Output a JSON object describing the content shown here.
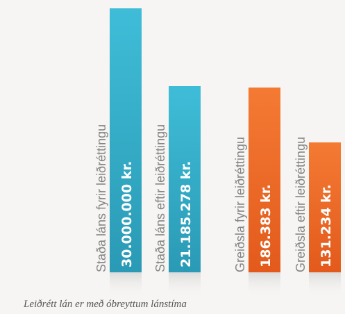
{
  "chart_data": [
    {
      "type": "bar",
      "categories": [
        "Staða láns fyrir leiðréttingu",
        "Staða láns eftir leiðréttingu"
      ],
      "values": [
        30000000,
        21185278
      ],
      "value_labels": [
        "30.000.000 kr.",
        "21.185.278 kr."
      ],
      "colors": {
        "top": "#3fbdd8",
        "bottom": "#2a9ab5"
      },
      "ylim": [
        0,
        30000000
      ]
    },
    {
      "type": "bar",
      "categories": [
        "Greiðsla fyrir leiðréttingu",
        "Greiðsla eftir leiðréttingu"
      ],
      "values": [
        186383,
        131234
      ],
      "value_labels": [
        "186.383 kr.",
        "131.234 kr."
      ],
      "colors": {
        "top": "#f47a33",
        "bottom": "#e35a1c"
      },
      "ylim": [
        0,
        186383
      ]
    }
  ],
  "caption": "Leiðrétt lán er með óbreyttum lánstíma",
  "colors": {
    "background": "#f6f5f3",
    "category_text": "#858585",
    "value_text": "#ffffff",
    "reflection": "#e2e2e2"
  }
}
